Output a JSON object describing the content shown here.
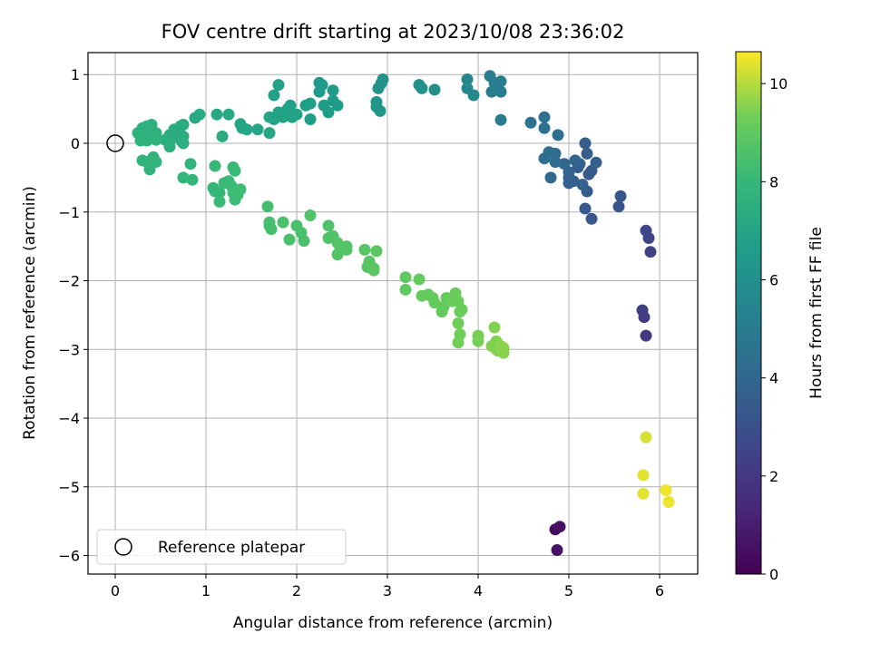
{
  "chart_data": {
    "type": "scatter",
    "title": "FOV centre drift starting at 2023/10/08 23:36:02",
    "xlabel": "Angular distance from reference (arcmin)",
    "ylabel": "Rotation from reference (arcmin)",
    "xlim": [
      -0.3,
      6.42
    ],
    "ylim": [
      -6.27,
      1.32
    ],
    "x_ticks": [
      0,
      1,
      2,
      3,
      4,
      5,
      6
    ],
    "x_tick_labels": [
      "0",
      "1",
      "2",
      "3",
      "4",
      "5",
      "6"
    ],
    "y_ticks": [
      1,
      0,
      -1,
      -2,
      -3,
      -4,
      -5,
      -6
    ],
    "y_tick_labels": [
      "1",
      "0",
      "−1",
      "−2",
      "−3",
      "−4",
      "−5",
      "−6"
    ],
    "grid": true,
    "colormap": "viridis",
    "colorbar": {
      "label": "Hours from first FF file",
      "min": 0,
      "max": 10.65,
      "ticks": [
        0,
        2,
        4,
        6,
        8,
        10
      ],
      "tick_labels": [
        "0",
        "2",
        "4",
        "6",
        "8",
        "10"
      ]
    },
    "legend": {
      "position": "lower-left",
      "entries": [
        {
          "label": "Reference platepar",
          "marker": "open-circle"
        }
      ]
    },
    "reference_point": {
      "x": 0,
      "y": 0
    },
    "points": [
      [
        4.85,
        -5.62,
        0.4
      ],
      [
        4.9,
        -5.58,
        0.5
      ],
      [
        4.87,
        -5.92,
        0.6
      ],
      [
        5.85,
        -2.8,
        2.0
      ],
      [
        5.83,
        -2.53,
        2.1
      ],
      [
        5.81,
        -2.43,
        2.2
      ],
      [
        5.9,
        -1.58,
        2.4
      ],
      [
        5.88,
        -1.38,
        2.5
      ],
      [
        5.85,
        -1.27,
        2.6
      ],
      [
        5.2,
        -0.7,
        3.4
      ],
      [
        5.25,
        -0.4,
        3.5
      ],
      [
        5.12,
        -0.3,
        3.6
      ],
      [
        5.3,
        -0.28,
        3.6
      ],
      [
        5.0,
        -0.5,
        3.7
      ],
      [
        5.1,
        -0.35,
        3.6
      ],
      [
        5.2,
        -0.15,
        3.5
      ],
      [
        5.18,
        0.0,
        3.5
      ],
      [
        5.05,
        -0.55,
        3.6
      ],
      [
        5.15,
        -0.6,
        3.7
      ],
      [
        5.22,
        -0.45,
        3.4
      ],
      [
        5.25,
        -1.1,
        3.3
      ],
      [
        5.18,
        -0.95,
        3.4
      ],
      [
        5.55,
        -0.92,
        3.1
      ],
      [
        5.57,
        -0.77,
        3.2
      ],
      [
        5.0,
        -0.42,
        3.8
      ],
      [
        4.95,
        -0.3,
        3.9
      ],
      [
        5.07,
        -0.25,
        3.9
      ],
      [
        5.0,
        -0.58,
        3.7
      ],
      [
        4.73,
        -0.22,
        4.3
      ],
      [
        4.78,
        -0.13,
        4.3
      ],
      [
        4.85,
        -0.15,
        4.2
      ],
      [
        4.85,
        -0.27,
        4.2
      ],
      [
        4.8,
        -0.5,
        4.1
      ],
      [
        4.58,
        0.3,
        4.5
      ],
      [
        4.73,
        0.22,
        4.4
      ],
      [
        4.73,
        0.38,
        4.4
      ],
      [
        4.88,
        0.12,
        4.3
      ],
      [
        4.25,
        0.34,
        5.0
      ],
      [
        4.25,
        0.9,
        5.0
      ],
      [
        4.15,
        0.75,
        5.0
      ],
      [
        4.25,
        0.75,
        5.0
      ],
      [
        4.13,
        0.98,
        5.1
      ],
      [
        4.18,
        0.88,
        5.0
      ],
      [
        4.2,
        0.78,
        5.1
      ],
      [
        3.88,
        0.93,
        5.5
      ],
      [
        3.88,
        0.8,
        5.6
      ],
      [
        3.95,
        0.7,
        5.6
      ],
      [
        3.52,
        0.78,
        5.9
      ],
      [
        3.35,
        0.85,
        6.0
      ],
      [
        3.38,
        0.8,
        6.0
      ],
      [
        2.95,
        0.93,
        6.1
      ],
      [
        2.93,
        0.87,
        6.1
      ],
      [
        2.9,
        0.8,
        6.1
      ],
      [
        2.88,
        0.6,
        6.2
      ],
      [
        2.88,
        0.53,
        6.3
      ],
      [
        2.92,
        0.47,
        6.3
      ],
      [
        2.25,
        0.88,
        6.5
      ],
      [
        2.28,
        0.85,
        6.5
      ],
      [
        2.25,
        0.75,
        6.5
      ],
      [
        2.4,
        0.77,
        6.5
      ],
      [
        2.45,
        0.55,
        6.6
      ],
      [
        2.3,
        0.55,
        6.6
      ],
      [
        2.35,
        0.45,
        6.6
      ],
      [
        2.4,
        0.62,
        6.5
      ],
      [
        2.15,
        0.35,
        6.7
      ],
      [
        2.15,
        0.58,
        6.7
      ],
      [
        2.1,
        0.55,
        6.7
      ],
      [
        1.8,
        0.85,
        6.8
      ],
      [
        1.75,
        0.7,
        6.8
      ],
      [
        1.93,
        0.55,
        6.8
      ],
      [
        1.9,
        0.5,
        6.8
      ],
      [
        1.85,
        0.42,
        6.9
      ],
      [
        1.8,
        0.45,
        6.9
      ],
      [
        2.0,
        0.42,
        6.9
      ],
      [
        1.95,
        0.38,
        6.9
      ],
      [
        1.85,
        0.38,
        6.9
      ],
      [
        1.75,
        0.35,
        6.9
      ],
      [
        1.7,
        0.38,
        7.0
      ],
      [
        1.7,
        0.15,
        7.1
      ],
      [
        1.57,
        0.2,
        7.1
      ],
      [
        1.45,
        0.2,
        7.1
      ],
      [
        1.38,
        0.28,
        7.1
      ],
      [
        1.4,
        0.22,
        7.1
      ],
      [
        1.25,
        0.42,
        7.2
      ],
      [
        1.12,
        0.42,
        7.2
      ],
      [
        1.18,
        0.1,
        7.3
      ],
      [
        0.93,
        0.42,
        7.3
      ],
      [
        0.88,
        0.37,
        7.3
      ],
      [
        0.75,
        0.27,
        7.3
      ],
      [
        0.72,
        0.25,
        7.4
      ],
      [
        0.65,
        0.2,
        7.4
      ],
      [
        0.6,
        0.12,
        7.4
      ],
      [
        0.7,
        0.1,
        7.4
      ],
      [
        0.75,
        0.1,
        7.4
      ],
      [
        0.73,
        0.03,
        7.5
      ],
      [
        0.6,
        0.03,
        7.5
      ],
      [
        0.55,
        0.05,
        7.5
      ],
      [
        0.6,
        -0.05,
        7.5
      ],
      [
        0.75,
        0.0,
        7.5
      ],
      [
        0.45,
        0.15,
        7.6
      ],
      [
        0.4,
        0.27,
        7.6
      ],
      [
        0.35,
        0.25,
        7.6
      ],
      [
        0.3,
        0.22,
        7.6
      ],
      [
        0.25,
        0.15,
        7.7
      ],
      [
        0.3,
        0.1,
        7.7
      ],
      [
        0.28,
        0.04,
        7.7
      ],
      [
        0.35,
        0.04,
        7.7
      ],
      [
        0.4,
        0.08,
        7.7
      ],
      [
        0.42,
        0.12,
        7.7
      ],
      [
        0.45,
        0.05,
        7.7
      ],
      [
        0.38,
        0.18,
        7.6
      ],
      [
        0.3,
        -0.25,
        7.8
      ],
      [
        0.35,
        -0.27,
        7.8
      ],
      [
        0.38,
        -0.38,
        7.8
      ],
      [
        0.45,
        -0.27,
        7.8
      ],
      [
        0.42,
        -0.2,
        7.8
      ],
      [
        0.83,
        -0.3,
        7.8
      ],
      [
        0.85,
        -0.53,
        7.9
      ],
      [
        0.75,
        -0.5,
        7.9
      ],
      [
        1.1,
        -0.33,
        8.0
      ],
      [
        1.08,
        -0.65,
        8.0
      ],
      [
        1.1,
        -0.7,
        8.0
      ],
      [
        1.15,
        -0.72,
        8.0
      ],
      [
        1.15,
        -0.85,
        8.1
      ],
      [
        1.2,
        -0.58,
        8.1
      ],
      [
        1.25,
        -0.55,
        8.1
      ],
      [
        1.28,
        -0.62,
        8.1
      ],
      [
        1.3,
        -0.35,
        8.1
      ],
      [
        1.32,
        -0.4,
        8.1
      ],
      [
        1.3,
        -0.72,
        8.2
      ],
      [
        1.32,
        -0.82,
        8.2
      ],
      [
        1.38,
        -0.67,
        8.2
      ],
      [
        1.35,
        -0.75,
        8.2
      ],
      [
        1.68,
        -0.92,
        8.4
      ],
      [
        1.7,
        -1.15,
        8.4
      ],
      [
        1.72,
        -1.25,
        8.4
      ],
      [
        1.7,
        -1.2,
        8.4
      ],
      [
        1.85,
        -1.15,
        8.5
      ],
      [
        1.92,
        -1.4,
        8.5
      ],
      [
        2.0,
        -1.2,
        8.5
      ],
      [
        2.05,
        -1.3,
        8.5
      ],
      [
        2.08,
        -1.42,
        8.5
      ],
      [
        2.15,
        -1.05,
        8.6
      ],
      [
        2.35,
        -1.2,
        8.6
      ],
      [
        2.35,
        -1.38,
        8.6
      ],
      [
        2.4,
        -1.35,
        8.6
      ],
      [
        2.45,
        -1.45,
        8.7
      ],
      [
        2.48,
        -1.55,
        8.7
      ],
      [
        2.45,
        -1.62,
        8.7
      ],
      [
        2.55,
        -1.5,
        8.7
      ],
      [
        2.55,
        -1.55,
        8.7
      ],
      [
        2.75,
        -1.55,
        8.8
      ],
      [
        2.78,
        -1.8,
        8.8
      ],
      [
        2.8,
        -1.72,
        8.8
      ],
      [
        2.85,
        -1.85,
        8.9
      ],
      [
        2.88,
        -1.57,
        8.9
      ],
      [
        2.85,
        -1.82,
        8.9
      ],
      [
        3.2,
        -1.95,
        9.0
      ],
      [
        3.2,
        -2.13,
        9.0
      ],
      [
        3.35,
        -1.98,
        9.1
      ],
      [
        3.38,
        -2.22,
        9.1
      ],
      [
        3.45,
        -2.2,
        9.1
      ],
      [
        3.5,
        -2.25,
        9.1
      ],
      [
        3.52,
        -2.32,
        9.1
      ],
      [
        3.6,
        -2.45,
        9.1
      ],
      [
        3.62,
        -2.38,
        9.1
      ],
      [
        3.65,
        -2.25,
        9.1
      ],
      [
        3.72,
        -2.3,
        9.2
      ],
      [
        3.75,
        -2.18,
        9.2
      ],
      [
        3.78,
        -2.3,
        9.2
      ],
      [
        3.8,
        -2.45,
        9.2
      ],
      [
        3.82,
        -2.42,
        9.2
      ],
      [
        3.78,
        -2.62,
        9.3
      ],
      [
        3.8,
        -2.78,
        9.3
      ],
      [
        3.78,
        -2.9,
        9.3
      ],
      [
        4.0,
        -2.8,
        9.4
      ],
      [
        4.0,
        -2.88,
        9.4
      ],
      [
        4.15,
        -2.95,
        9.5
      ],
      [
        4.18,
        -2.68,
        9.5
      ],
      [
        4.2,
        -2.88,
        9.5
      ],
      [
        4.2,
        -3.0,
        9.5
      ],
      [
        4.22,
        -3.02,
        9.5
      ],
      [
        4.25,
        -2.95,
        9.6
      ],
      [
        4.28,
        -3.05,
        9.6
      ],
      [
        4.28,
        -2.98,
        9.6
      ],
      [
        5.85,
        -4.28,
        10.3
      ],
      [
        5.82,
        -4.83,
        10.4
      ],
      [
        5.82,
        -5.1,
        10.4
      ],
      [
        6.07,
        -5.05,
        10.5
      ],
      [
        6.1,
        -5.22,
        10.5
      ]
    ]
  }
}
